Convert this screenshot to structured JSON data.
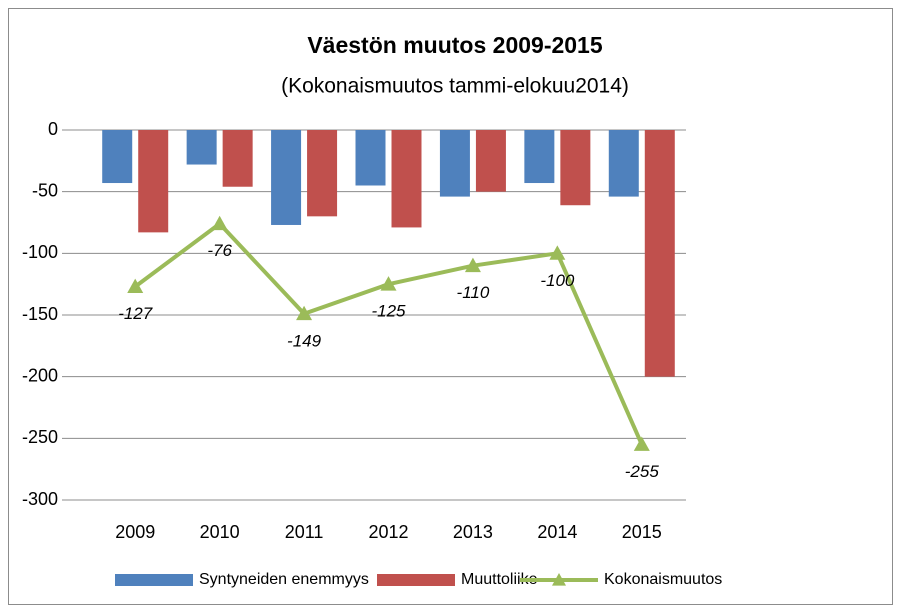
{
  "chart_data": {
    "type": "bar",
    "title": "Väestön muutos 2009-2015",
    "subtitle": "(Kokonaismuutos  tammi-elokuu2014)",
    "categories": [
      "2009",
      "2010",
      "2011",
      "2012",
      "2013",
      "2014",
      "2015"
    ],
    "series": [
      {
        "name": "Syntyneiden enemmyys",
        "type": "bar",
        "color": "#4f81bd",
        "values": [
          -43,
          -28,
          -77,
          -45,
          -54,
          -43,
          -54
        ]
      },
      {
        "name": "Muuttoliike",
        "type": "bar",
        "color": "#c0504d",
        "values": [
          -83,
          -46,
          -70,
          -79,
          -50,
          -61,
          -200
        ]
      },
      {
        "name": "Kokonaismuutos",
        "type": "line",
        "color": "#9bbb59",
        "values": [
          -127,
          -76,
          -149,
          -125,
          -110,
          -100,
          -255
        ],
        "data_labels": true
      }
    ],
    "ylim": [
      -300,
      0
    ],
    "yticks": [
      0,
      -50,
      -100,
      -150,
      -200,
      -250,
      -300
    ],
    "grid": true,
    "legend": "bottom"
  }
}
